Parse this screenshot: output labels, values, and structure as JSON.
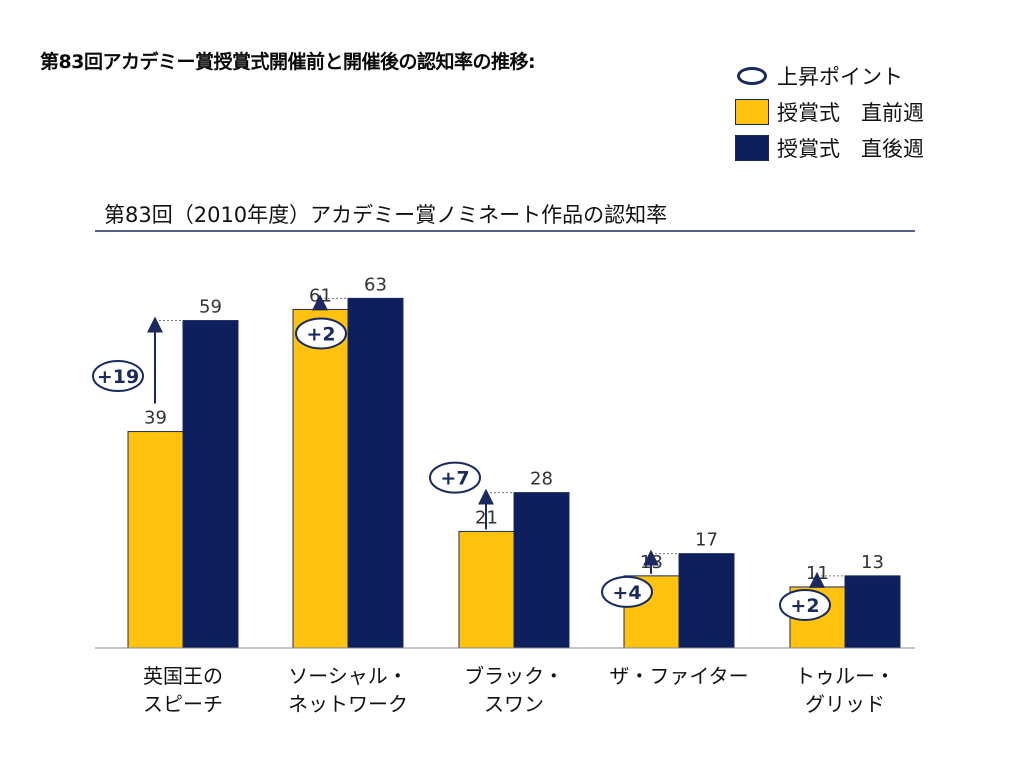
{
  "main_title": "第83回アカデミー賞授賞式開催前と開催後の認知率の推移:",
  "legend": {
    "rise_label": "上昇ポイント",
    "before_label": "授賞式　直前週",
    "after_label": "授賞式　直後週"
  },
  "colors": {
    "before": "#FFC20E",
    "after": "#0D1F5C",
    "border": "#1a2a5e"
  },
  "chart_data": {
    "type": "bar",
    "title": "第83回（2010年度）アカデミー賞ノミネート作品の認知率",
    "categories": [
      "英国王の\nスピーチ",
      "ソーシャル・\nネットワーク",
      "ブラック・\nスワン",
      "ザ・ファイター",
      "トゥルー・\nグリッド"
    ],
    "series": [
      {
        "name": "授賞式　直前週",
        "values": [
          39,
          61,
          21,
          13,
          11
        ]
      },
      {
        "name": "授賞式　直後週",
        "values": [
          59,
          63,
          28,
          17,
          13
        ]
      }
    ],
    "rise": [
      "+19",
      "+2",
      "+7",
      "+4",
      "+2"
    ],
    "ylim": [
      0,
      100
    ],
    "grid": false
  }
}
